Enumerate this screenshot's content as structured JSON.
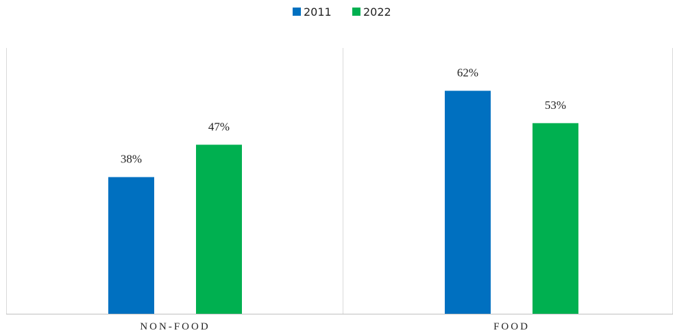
{
  "chart_data": {
    "type": "bar",
    "categories": [
      "NON-FOOD",
      "FOOD"
    ],
    "series": [
      {
        "name": "2011",
        "values": [
          38,
          62
        ],
        "labels": [
          "38%",
          "62%"
        ],
        "color": "#0070C0"
      },
      {
        "name": "2022",
        "values": [
          47,
          53
        ],
        "labels": [
          "47%",
          "53%"
        ],
        "color": "#00B050"
      }
    ],
    "ylim": [
      0,
      70
    ],
    "legend": "top-center",
    "grid": false
  }
}
